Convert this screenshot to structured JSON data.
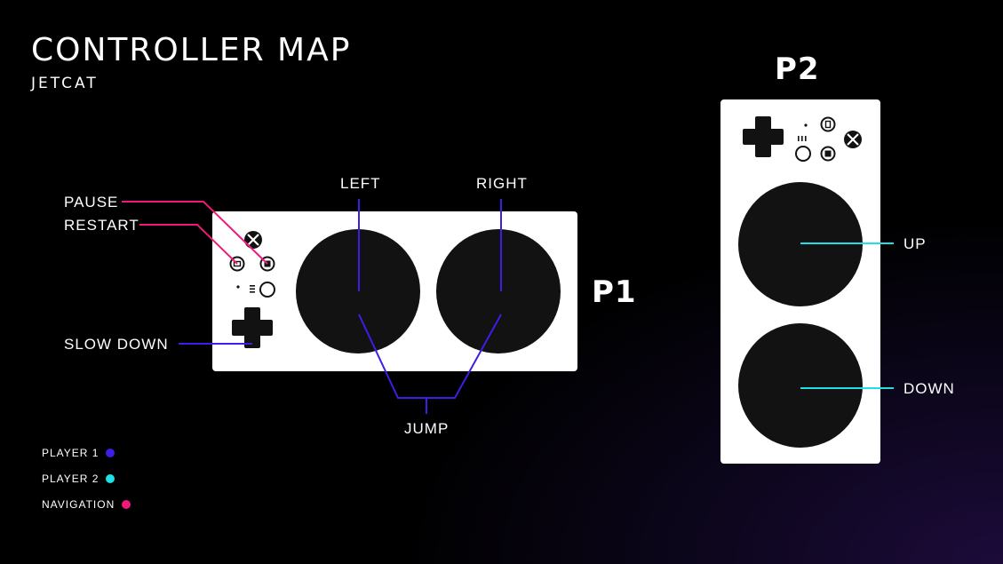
{
  "header": {
    "title": "CONTROLLER MAP",
    "subtitle": "JETCAT"
  },
  "player1": {
    "tag": "P1",
    "labels": {
      "pause": "PAUSE",
      "restart": "RESTART",
      "slow_down": "SLOW DOWN",
      "left": "LEFT",
      "right": "RIGHT",
      "jump": "JUMP"
    }
  },
  "player2": {
    "tag": "P2",
    "labels": {
      "up": "UP",
      "down": "DOWN"
    }
  },
  "legend": [
    {
      "label": "PLAYER 1",
      "color": "#3d1ee8"
    },
    {
      "label": "PLAYER 2",
      "color": "#1ee0e6"
    },
    {
      "label": "NAVIGATION",
      "color": "#f0197a"
    }
  ],
  "colors": {
    "player1": "#3d1ee8",
    "player2": "#1ee0e6",
    "navigation": "#f0197a",
    "panel": "#ffffff",
    "button": "#121212"
  },
  "icons": [
    "xbox-logo-icon",
    "view-icon",
    "menu-icon",
    "profile-icon",
    "dpad-icon",
    "led-icon"
  ]
}
